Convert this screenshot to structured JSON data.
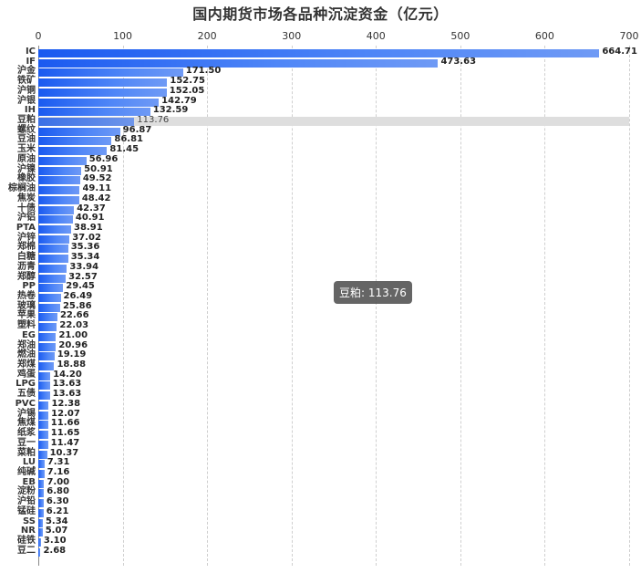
{
  "chart_data": {
    "type": "bar",
    "orientation": "horizontal",
    "title": "国内期货市场各品种沉淀资金（亿元）",
    "xlabel": "",
    "ylabel": "",
    "xlim": [
      0,
      700
    ],
    "x_ticks": [
      "0",
      "100",
      "200",
      "300",
      "400",
      "500",
      "600",
      "700"
    ],
    "x_axis_position": "top",
    "grid": "vertical dashed",
    "legend": "none",
    "categories": [
      "IC",
      "IF",
      "沪金",
      "铁矿",
      "沪铜",
      "沪银",
      "IH",
      "豆粕",
      "螺纹",
      "豆油",
      "玉米",
      "原油",
      "沪镍",
      "橡胶",
      "棕榈油",
      "焦炭",
      "十债",
      "沪铝",
      "PTA",
      "沪锌",
      "郑棉",
      "白糖",
      "沥青",
      "郑醇",
      "PP",
      "热卷",
      "玻璃",
      "苹果",
      "塑料",
      "EG",
      "郑油",
      "燃油",
      "郑煤",
      "鸡蛋",
      "LPG",
      "五债",
      "PVC",
      "沪锡",
      "焦煤",
      "纸浆",
      "豆一",
      "菜粕",
      "LU",
      "纯碱",
      "EB",
      "淀粉",
      "沪铅",
      "锰硅",
      "SS",
      "NR",
      "硅铁",
      "豆二"
    ],
    "values": [
      664.71,
      473.63,
      171.5,
      152.75,
      152.05,
      142.79,
      132.59,
      113.76,
      96.87,
      86.81,
      81.45,
      56.96,
      50.91,
      49.52,
      49.11,
      48.42,
      42.37,
      40.91,
      38.91,
      37.02,
      35.36,
      35.34,
      33.94,
      32.57,
      29.45,
      26.49,
      25.86,
      22.66,
      22.03,
      21.0,
      20.96,
      19.19,
      18.88,
      14.2,
      13.63,
      13.63,
      12.38,
      12.07,
      11.66,
      11.65,
      11.47,
      10.37,
      7.31,
      7.16,
      7.0,
      6.8,
      6.3,
      6.21,
      5.34,
      5.07,
      3.1,
      2.68
    ],
    "value_labels": [
      "664.71",
      "473.63",
      "171.50",
      "152.75",
      "152.05",
      "142.79",
      "132.59",
      "113.76",
      "96.87",
      "86.81",
      "81.45",
      "56.96",
      "50.91",
      "49.52",
      "49.11",
      "48.42",
      "42.37",
      "40.91",
      "38.91",
      "37.02",
      "35.36",
      "35.34",
      "33.94",
      "32.57",
      "29.45",
      "26.49",
      "25.86",
      "22.66",
      "22.03",
      "21.00",
      "20.96",
      "19.19",
      "18.88",
      "14.20",
      "13.63",
      "13.63",
      "12.38",
      "12.07",
      "11.66",
      "11.65",
      "11.47",
      "10.37",
      "7.31",
      "7.16",
      "7.00",
      "6.80",
      "6.30",
      "6.21",
      "5.34",
      "5.07",
      "3.10",
      "2.68"
    ],
    "highlighted_index": 7,
    "tooltip": "豆粕: 113.76",
    "colors": {
      "bar_start": "#1a5af0",
      "bar_end": "#6f9af5",
      "highlight_bg": "#dedede",
      "tooltip_bg": "#555555"
    }
  }
}
